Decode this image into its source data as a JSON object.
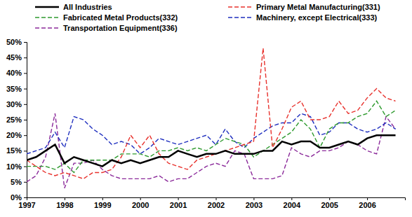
{
  "chart_data": {
    "type": "line",
    "x": [
      1997,
      1997.25,
      1997.5,
      1997.75,
      1998,
      1998.25,
      1998.5,
      1998.75,
      1999,
      1999.25,
      1999.5,
      1999.75,
      2000,
      2000.25,
      2000.5,
      2000.75,
      2001,
      2001.25,
      2001.5,
      2001.75,
      2002,
      2002.25,
      2002.5,
      2002.75,
      2003,
      2003.25,
      2003.5,
      2003.75,
      2004,
      2004.25,
      2004.5,
      2004.75,
      2005,
      2005.25,
      2005.5,
      2005.75,
      2006,
      2006.25,
      2006.5,
      2006.75
    ],
    "series": [
      {
        "name": "All Industries",
        "color": "#000000",
        "line_style": "solid",
        "values": [
          12,
          13,
          15,
          17,
          11,
          13,
          12,
          11,
          10,
          12,
          11,
          12,
          11,
          12,
          13,
          13,
          15,
          14,
          13,
          14,
          14,
          15,
          14,
          14,
          14,
          15,
          15,
          18,
          17,
          18,
          18,
          16,
          16,
          17,
          18,
          17,
          19,
          20,
          20,
          20
        ]
      },
      {
        "name": "Primary Metal Manufacturing(331)",
        "color": "#e8322d",
        "line_style": "dashed",
        "values": [
          12,
          10,
          8,
          7,
          8,
          7,
          6,
          8,
          8,
          9,
          13,
          20,
          16,
          20,
          14,
          11,
          10,
          9,
          12,
          13,
          14,
          15,
          16,
          17,
          18,
          48,
          16,
          22,
          29,
          31,
          25,
          25,
          26,
          31,
          27,
          28,
          32,
          35,
          32,
          31
        ]
      },
      {
        "name": "Fabricated Metal Products(332)",
        "color": "#2e9a2e",
        "line_style": "dashed",
        "values": [
          10,
          10,
          10,
          9,
          11,
          8,
          12,
          12,
          12,
          12,
          14,
          14,
          14,
          13,
          15,
          15,
          16,
          15,
          16,
          15,
          17,
          19,
          18,
          17,
          13,
          15,
          17,
          19,
          21,
          25,
          22,
          16,
          22,
          24,
          24,
          26,
          27,
          31,
          26,
          28
        ]
      },
      {
        "name": "Machinery, except Electrical(333)",
        "color": "#1f2fbf",
        "line_style": "dashed",
        "values": [
          14,
          15,
          16,
          21,
          16,
          26,
          25,
          22,
          20,
          17,
          18,
          17,
          14,
          16,
          19,
          18,
          17,
          18,
          19,
          20,
          17,
          22,
          18,
          16,
          19,
          21,
          23,
          24,
          24,
          27,
          26,
          20,
          21,
          24,
          24,
          22,
          21,
          22,
          24,
          22
        ]
      },
      {
        "name": "Transportation Equipment(336)",
        "color": "#8b2a9a",
        "line_style": "dashed",
        "values": [
          5,
          7,
          13,
          27,
          3,
          11,
          11,
          12,
          9,
          7,
          6,
          6,
          6,
          6,
          7,
          5,
          6,
          6,
          8,
          10,
          11,
          10,
          15,
          14,
          6,
          6,
          6,
          7,
          16,
          14,
          13,
          15,
          15,
          16,
          18,
          17,
          15,
          14,
          26,
          22
        ]
      }
    ],
    "xlim": [
      1997,
      2007
    ],
    "xticks": [
      1997,
      1998,
      1999,
      2000,
      2001,
      2002,
      2003,
      2004,
      2005,
      2006
    ],
    "ylim": [
      0,
      50
    ],
    "yticks": [
      {
        "value": 0,
        "label": "0%"
      },
      {
        "value": 5,
        "label": "5%"
      },
      {
        "value": 10,
        "label": "10%"
      },
      {
        "value": 15,
        "label": "15%"
      },
      {
        "value": 20,
        "label": "20%"
      },
      {
        "value": 25,
        "label": "25%"
      },
      {
        "value": 30,
        "label": "30%"
      },
      {
        "value": 35,
        "label": "35%"
      },
      {
        "value": 40,
        "label": "40%"
      },
      {
        "value": 45,
        "label": "45%"
      },
      {
        "value": 50,
        "label": "50%"
      }
    ],
    "grid": false,
    "legend": "top"
  }
}
